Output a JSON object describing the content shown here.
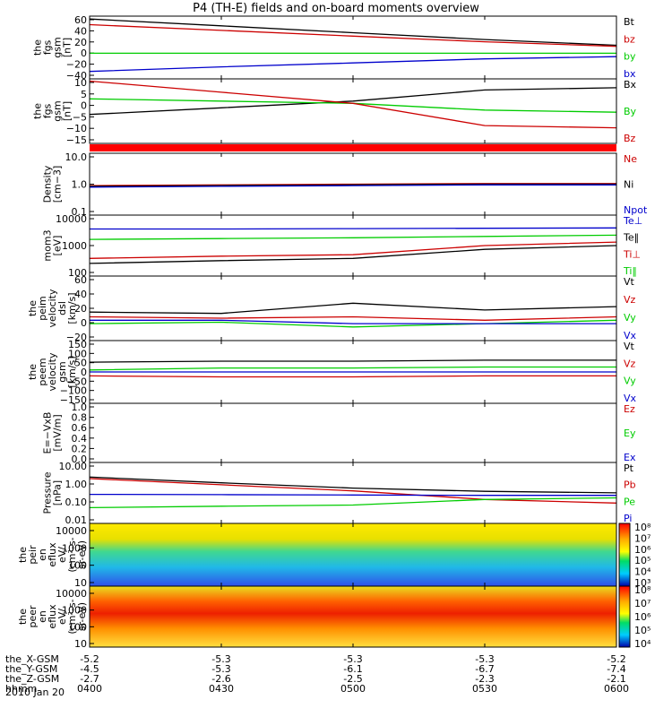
{
  "chart_data": {
    "type": "line",
    "title": "P4 (TH-E) fields and on-board moments overview",
    "x_tick_labels": [
      "0400",
      "0430",
      "0500",
      "0530",
      "0600"
    ],
    "ephemeris": [
      {
        "label": "the_X-GSM",
        "values": [
          "-5.2",
          "-5.3",
          "-5.3",
          "-5.3",
          "-5.2"
        ]
      },
      {
        "label": "the_Y-GSM",
        "values": [
          "-4.5",
          "-5.3",
          "-6.1",
          "-6.7",
          "-7.4"
        ]
      },
      {
        "label": "the_Z-GSM",
        "values": [
          "-2.7",
          "-2.6",
          "-2.5",
          "-2.3",
          "-2.1"
        ]
      },
      {
        "label": "hhmm",
        "values": [
          "0400",
          "0430",
          "0500",
          "0530",
          "0600"
        ]
      }
    ],
    "date_label": "2010 Jan 20",
    "x": [
      0,
      30,
      60,
      90,
      120
    ],
    "panels": [
      {
        "ylabel": [
          "the",
          "fgs",
          "gsm",
          "[nT]"
        ],
        "yticks": [
          "60",
          "40",
          "20",
          "0",
          "−20",
          "−40"
        ],
        "ylim": [
          -45,
          65
        ],
        "series": [
          {
            "name": "Bt",
            "color": "#000000",
            "values": [
              60,
              48,
              36,
              24,
              14
            ]
          },
          {
            "name": "bz",
            "color": "#cc0000",
            "values": [
              50,
              40,
              30,
              20,
              12
            ]
          },
          {
            "name": "by",
            "color": "#00cc00",
            "values": [
              0,
              0,
              0,
              0,
              0
            ]
          },
          {
            "name": "bx",
            "color": "#0000cc",
            "values": [
              -32,
              -24,
              -17,
              -10,
              -6
            ]
          }
        ]
      },
      {
        "ylabel": [
          "the",
          "fgs",
          "gsm",
          "[nT]"
        ],
        "yticks": [
          "10",
          "5",
          "0",
          "−5",
          "−10",
          "−15"
        ],
        "ylim": [
          -17,
          12
        ],
        "series": [
          {
            "name": "Bx",
            "color": "#000000",
            "values": [
              -4,
              -1,
              2,
              7,
              8
            ]
          },
          {
            "name": "By",
            "color": "#00cc00",
            "values": [
              3,
              2,
              1,
              -2,
              -3
            ]
          },
          {
            "name": "Bz",
            "color": "#cc0000",
            "values": [
              11,
              6,
              1,
              -9,
              -10
            ]
          }
        ]
      },
      {
        "ylabel": [
          "Density",
          "[cm−3]"
        ],
        "yticks": [
          "10.0",
          "1.0",
          "0.1"
        ],
        "log": true,
        "ylim": [
          0.1,
          10
        ],
        "series": [
          {
            "name": "Ne",
            "color": "#cc0000",
            "values": [
              0.9,
              0.95,
              1.0,
              1.05,
              1.05
            ]
          },
          {
            "name": "Ni",
            "color": "#000000",
            "values": [
              0.85,
              0.9,
              0.95,
              1.0,
              1.0
            ]
          },
          {
            "name": "Npot",
            "color": "#0000cc",
            "values": [
              0.8,
              0.85,
              0.9,
              0.95,
              0.95
            ]
          }
        ]
      },
      {
        "ylabel": [
          "mom3",
          "[eV]"
        ],
        "yticks": [
          "10000",
          "1000",
          "100"
        ],
        "log": true,
        "ylim": [
          100,
          10000
        ],
        "series": [
          {
            "name": "Te⊥",
            "color": "#0000cc",
            "values": [
              3500,
              3500,
              3600,
              3700,
              3800
            ]
          },
          {
            "name": "Te‖",
            "color": "#000000",
            "values": [
              260,
              320,
              380,
              750,
              1000
            ]
          },
          {
            "name": "Ti⊥",
            "color": "#cc0000",
            "values": [
              380,
              450,
              500,
              1000,
              1300
            ]
          },
          {
            "name": "Ti‖",
            "color": "#00cc00",
            "values": [
              1600,
              1700,
              1800,
              2000,
              2200
            ]
          }
        ]
      },
      {
        "ylabel": [
          "the",
          "peim",
          "velocity",
          "dsl",
          "[km/s]"
        ],
        "yticks": [
          "60",
          "40",
          "20",
          "0",
          "−20"
        ],
        "ylim": [
          -30,
          65
        ],
        "series": [
          {
            "name": "Vt",
            "color": "#000000",
            "values": [
              12,
              10,
              25,
              15,
              20
            ]
          },
          {
            "name": "Vz",
            "color": "#cc0000",
            "values": [
              5,
              3,
              5,
              0,
              5
            ]
          },
          {
            "name": "Vy",
            "color": "#00cc00",
            "values": [
              -5,
              -3,
              -10,
              -5,
              0
            ]
          },
          {
            "name": "Vx",
            "color": "#0000cc",
            "values": [
              0,
              0,
              -5,
              -5,
              -5
            ]
          }
        ]
      },
      {
        "ylabel": [
          "the",
          "peem",
          "velocity",
          "gsm",
          "[km/s]"
        ],
        "yticks": [
          "150",
          "100",
          "50",
          "0",
          "−50",
          "−100",
          "−150"
        ],
        "ylim": [
          -160,
          160
        ],
        "series": [
          {
            "name": "Vt",
            "color": "#000000",
            "values": [
              50,
              55,
              55,
              60,
              60
            ]
          },
          {
            "name": "Vz",
            "color": "#cc0000",
            "values": [
              -20,
              -25,
              -25,
              -20,
              -20
            ]
          },
          {
            "name": "Vy",
            "color": "#00cc00",
            "values": [
              10,
              20,
              20,
              25,
              25
            ]
          },
          {
            "name": "Vx",
            "color": "#0000cc",
            "values": [
              0,
              0,
              0,
              0,
              0
            ]
          }
        ]
      },
      {
        "ylabel": [
          "E=−VxB",
          "[mV/m]"
        ],
        "yticks": [
          "1.0",
          "0.8",
          "0.6",
          "0.4",
          "0.2",
          "0.0"
        ],
        "ylim": [
          0,
          1
        ],
        "series": [
          {
            "name": "Ez",
            "color": "#cc0000",
            "values": []
          },
          {
            "name": "Ey",
            "color": "#00cc00",
            "values": []
          },
          {
            "name": "Ex",
            "color": "#0000cc",
            "values": []
          }
        ]
      },
      {
        "ylabel": [
          "Pressure",
          "[nPa]"
        ],
        "yticks": [
          "10.00",
          "1.00",
          "0.10",
          "0.01"
        ],
        "log": true,
        "ylim": [
          0.01,
          10
        ],
        "series": [
          {
            "name": "Pt",
            "color": "#000000",
            "values": [
              1.9,
              1.0,
              0.55,
              0.38,
              0.32
            ]
          },
          {
            "name": "Pb",
            "color": "#cc0000",
            "values": [
              1.6,
              0.8,
              0.4,
              0.15,
              0.1
            ]
          },
          {
            "name": "Pe",
            "color": "#00cc00",
            "values": [
              0.06,
              0.07,
              0.08,
              0.15,
              0.18
            ]
          },
          {
            "name": "Pi",
            "color": "#0000cc",
            "values": [
              0.27,
              0.26,
              0.25,
              0.24,
              0.24
            ]
          }
        ]
      },
      {
        "type": "heatmap",
        "ylabel": [
          "the",
          "peir",
          "en",
          "eflux",
          "eV/",
          "(cm²-s-",
          "sr-eV)"
        ],
        "yticks": [
          "10000",
          "1000",
          "100",
          "10"
        ],
        "colorbar_ticks": [
          "10⁸",
          "10⁷",
          "10⁶",
          "10⁵",
          "10⁴",
          "10³"
        ]
      },
      {
        "type": "heatmap",
        "ylabel": [
          "the",
          "peer",
          "en",
          "eflux",
          "eV/",
          "(cm²-s-",
          "sr-eV)"
        ],
        "yticks": [
          "10000",
          "1000",
          "100",
          "10"
        ],
        "colorbar_ticks": [
          "10⁸",
          "10⁷",
          "10⁶",
          "10⁵",
          "10⁴"
        ]
      }
    ]
  }
}
